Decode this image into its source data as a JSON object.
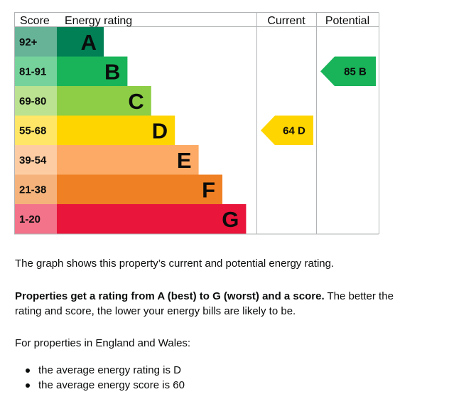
{
  "chart_data": {
    "type": "bar",
    "headers": {
      "score": "Score",
      "rating": "Energy rating",
      "current": "Current",
      "potential": "Potential"
    },
    "bands": [
      {
        "score_range": "92+",
        "letter": "A",
        "color": "#008054",
        "score_bg": "#66b398"
      },
      {
        "score_range": "81-91",
        "letter": "B",
        "color": "#19b459",
        "score_bg": "#75d29b"
      },
      {
        "score_range": "69-80",
        "letter": "C",
        "color": "#8dce46",
        "score_bg": "#bbe290"
      },
      {
        "score_range": "55-68",
        "letter": "D",
        "color": "#ffd500",
        "score_bg": "#ffe666"
      },
      {
        "score_range": "39-54",
        "letter": "E",
        "color": "#fcaa65",
        "score_bg": "#fdcca3"
      },
      {
        "score_range": "21-38",
        "letter": "F",
        "color": "#ef8023",
        "score_bg": "#f5b37b"
      },
      {
        "score_range": "1-20",
        "letter": "G",
        "color": "#e9153b",
        "score_bg": "#f2738a"
      }
    ],
    "current": {
      "score": 64,
      "letter": "D",
      "label": "64 D",
      "color": "#ffd500"
    },
    "potential": {
      "score": 85,
      "letter": "B",
      "label": "85 B",
      "color": "#19b459"
    }
  },
  "text": {
    "p1": "The graph shows this property’s current and potential energy rating.",
    "p2_bold": "Properties get a rating from A (best) to G (worst) and a score.",
    "p2_rest": " The better the rating and score, the lower your energy bills are likely to be.",
    "p3": "For properties in England and Wales:",
    "bullets": [
      "the average energy rating is D",
      "the average energy score is 60"
    ]
  }
}
